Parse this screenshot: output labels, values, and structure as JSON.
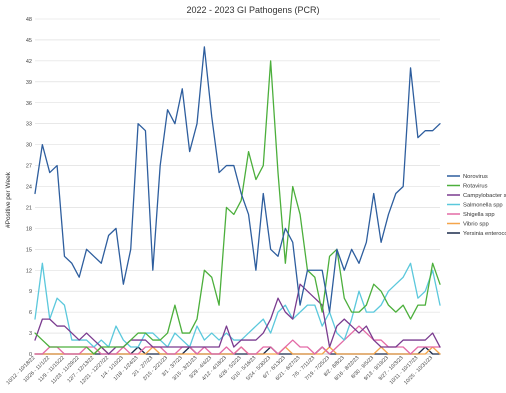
{
  "chart_data": {
    "type": "line",
    "title": "2022 - 2023 GI Pathogens (PCR)",
    "ylabel": "#Positive per Week",
    "xlabel": "",
    "ylim": [
      0,
      48
    ],
    "yticks": [
      0,
      3,
      6,
      9,
      12,
      15,
      18,
      21,
      24,
      27,
      30,
      33,
      36,
      39,
      42,
      45,
      48
    ],
    "grid": true,
    "legend_position": "right",
    "x_tick_labels": [
      "10/12 - 10/18/22",
      "10/26 - 11/1/22",
      "11/9 - 11/15/22",
      "11/23 - 11/29/22",
      "12/7 - 12/13/22",
      "12/21 - 12/27/22",
      "1/4 - 1/10/23",
      "1/18 - 1/24/23",
      "2/1 - 2/7/23",
      "2/15 - 2/21/23",
      "3/1 - 3/7/23",
      "3/15 - 3/21/23",
      "3/29 - 4/4/23",
      "4/12 - 4/18/23",
      "4/26 - 5/2/23",
      "5/10 - 5/16/23",
      "5/24 - 5/30/23",
      "6/7 - 6/13/23",
      "6/21 - 6/27/23",
      "7/5 - 7/11/23",
      "7/19 - 7/25/23",
      "8/2 - 8/8/23",
      "8/16 - 8/22/23",
      "8/30 - 9/5/23",
      "9/13 - 9/19/23",
      "9/27 - 10/3/23",
      "10/11 - 10/17/23",
      "10/25 - 10/31/23"
    ],
    "x_tick_step": 2,
    "series": [
      {
        "name": "Norovirus",
        "color": "#2e5e9e",
        "values": [
          23,
          30,
          26,
          27,
          14,
          13,
          11,
          15,
          14,
          13,
          17,
          18,
          10,
          15,
          33,
          32,
          12,
          27,
          35,
          33,
          38,
          29,
          33,
          44,
          34,
          26,
          27,
          27,
          23,
          20,
          12,
          23,
          15,
          14,
          18,
          16,
          7,
          12,
          12,
          12,
          6,
          15,
          12,
          15,
          13,
          16,
          23,
          16,
          20,
          23,
          24,
          41,
          31,
          32,
          32,
          33
        ]
      },
      {
        "name": "Rotavirus",
        "color": "#4caf3c",
        "values": [
          3,
          2,
          1,
          1,
          1,
          1,
          1,
          1,
          0,
          1,
          1,
          1,
          1,
          2,
          3,
          3,
          2,
          2,
          3,
          7,
          3,
          3,
          5,
          12,
          11,
          7,
          21,
          20,
          22,
          29,
          25,
          27,
          42,
          26,
          13,
          24,
          20,
          12,
          11,
          6,
          14,
          15,
          8,
          6,
          6,
          7,
          10,
          9,
          7,
          6,
          7,
          5,
          7,
          7,
          13,
          10
        ]
      },
      {
        "name": "Campylobacter spp",
        "color": "#7a3b8f",
        "values": [
          2,
          5,
          5,
          4,
          4,
          3,
          2,
          3,
          2,
          1,
          0,
          1,
          1,
          2,
          2,
          2,
          1,
          1,
          1,
          1,
          1,
          1,
          1,
          1,
          1,
          1,
          4,
          1,
          2,
          2,
          2,
          3,
          5,
          8,
          6,
          5,
          10,
          9,
          8,
          7,
          1,
          4,
          5,
          4,
          3,
          4,
          2,
          1,
          1,
          1,
          2,
          2,
          2,
          2,
          3,
          1
        ]
      },
      {
        "name": "Salmonella spp",
        "color": "#5bc8dc",
        "values": [
          5,
          13,
          5,
          8,
          7,
          2,
          2,
          2,
          1,
          2,
          1,
          4,
          2,
          1,
          1,
          3,
          3,
          2,
          1,
          3,
          2,
          1,
          4,
          2,
          3,
          2,
          3,
          2,
          2,
          3,
          4,
          5,
          3,
          6,
          7,
          5,
          6,
          7,
          7,
          4,
          6,
          3,
          2,
          5,
          9,
          6,
          6,
          7,
          9,
          10,
          11,
          13,
          8,
          9,
          12,
          7
        ]
      },
      {
        "name": "Shigella spp",
        "color": "#e36aa6",
        "values": [
          0,
          0,
          1,
          1,
          0,
          0,
          0,
          1,
          1,
          0,
          0,
          0,
          1,
          0,
          0,
          1,
          1,
          1,
          0,
          0,
          1,
          1,
          0,
          1,
          0,
          0,
          1,
          0,
          1,
          0,
          0,
          1,
          1,
          0,
          1,
          2,
          1,
          1,
          0,
          1,
          0,
          1,
          2,
          3,
          4,
          3,
          2,
          2,
          1,
          1,
          1,
          0,
          1,
          1,
          1,
          1
        ]
      },
      {
        "name": "Vibrio spp",
        "color": "#f5a54a",
        "values": [
          0,
          0,
          0,
          0,
          0,
          0,
          0,
          0,
          0,
          1,
          0,
          0,
          0,
          0,
          0,
          0,
          1,
          0,
          0,
          0,
          0,
          0,
          0,
          0,
          0,
          0,
          0,
          0,
          1,
          0,
          0,
          0,
          0,
          0,
          1,
          0,
          0,
          0,
          0,
          0,
          1,
          0,
          0,
          0,
          0,
          0,
          0,
          1,
          0,
          0,
          0,
          0,
          0,
          0,
          1,
          0
        ]
      },
      {
        "name": "Yersinia enterocolitica",
        "color": "#1b2a4a",
        "values": [
          0,
          0,
          0,
          0,
          0,
          0,
          0,
          0,
          0,
          0,
          0,
          0,
          0,
          0,
          1,
          0,
          0,
          0,
          0,
          0,
          0,
          1,
          0,
          0,
          0,
          0,
          0,
          0,
          0,
          0,
          0,
          0,
          1,
          0,
          0,
          0,
          0,
          0,
          0,
          1,
          0,
          0,
          0,
          0,
          0,
          0,
          0,
          0,
          0,
          0,
          0,
          0,
          0,
          1,
          0,
          0
        ]
      }
    ]
  }
}
